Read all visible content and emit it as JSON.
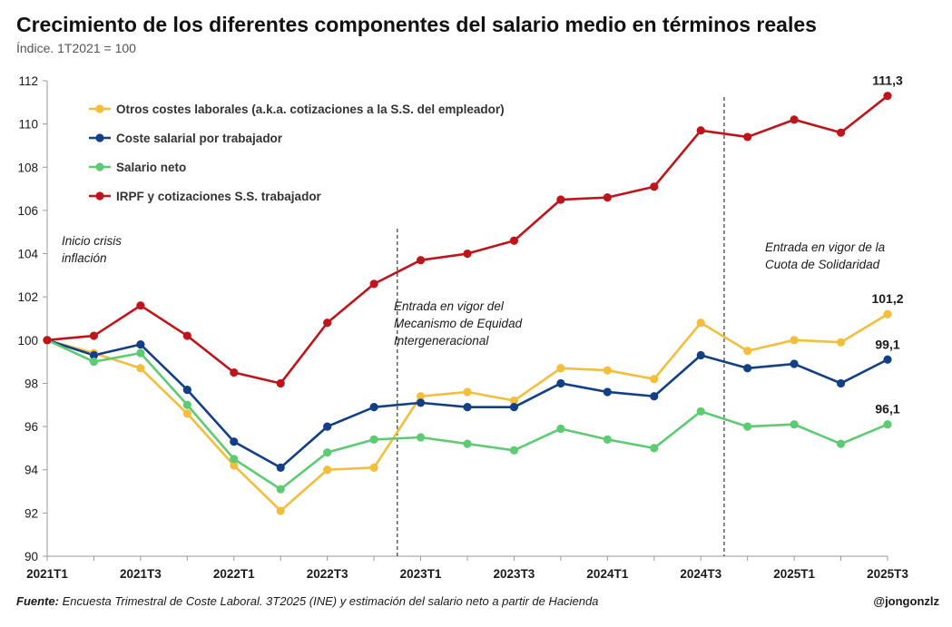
{
  "title": "Crecimiento de los diferentes componentes del salario medio en términos reales",
  "subtitle": "Índice. 1T2021 = 100",
  "footer": {
    "source_label": "Fuente:",
    "source_text": "Encuesta Trimestral de Coste Laboral. 3T2025 (INE) y estimación del salario neto a partir de Hacienda",
    "handle": "@jongonzlz"
  },
  "annotations": [
    {
      "text_lines": [
        "Inicio crisis",
        "inflación"
      ]
    },
    {
      "text_lines": [
        "Entrada en vigor del",
        "Mecanismo de Equidad",
        "Intergeneracional"
      ]
    },
    {
      "text_lines": [
        "Entrada en vigor de la",
        "Cuota de Solidaridad"
      ]
    }
  ],
  "chart_data": {
    "type": "line",
    "x": [
      "2021T1",
      "2021T2",
      "2021T3",
      "2021T4",
      "2022T1",
      "2022T2",
      "2022T3",
      "2022T4",
      "2023T1",
      "2023T2",
      "2023T3",
      "2023T4",
      "2024T1",
      "2024T2",
      "2024T3",
      "2024T4",
      "2025T1",
      "2025T2",
      "2025T3"
    ],
    "x_tick_labels": [
      "2021T1",
      "2021T3",
      "2022T1",
      "2022T3",
      "2023T1",
      "2023T3",
      "2024T1",
      "2024T3",
      "2025T1",
      "2025T3"
    ],
    "ylim": [
      90,
      112
    ],
    "y_ticks": [
      90,
      92,
      94,
      96,
      98,
      100,
      102,
      104,
      106,
      108,
      110,
      112
    ],
    "grid": false,
    "legend_position": "top-left",
    "vlines_after_index": [
      7,
      14
    ],
    "series": [
      {
        "name": "Otros costes laborales (a.k.a. cotizaciones a la S.S. del empleador)",
        "color": "#F2BE3C",
        "values": [
          100.0,
          99.4,
          98.7,
          96.6,
          94.2,
          92.1,
          94.0,
          94.1,
          97.4,
          97.6,
          97.2,
          98.7,
          98.6,
          98.2,
          100.8,
          99.5,
          100.0,
          99.9,
          101.2
        ],
        "end_label": "101,2"
      },
      {
        "name": "Coste salarial por trabajador",
        "color": "#123F86",
        "values": [
          100.0,
          99.3,
          99.8,
          97.7,
          95.3,
          94.1,
          96.0,
          96.9,
          97.1,
          96.9,
          96.9,
          98.0,
          97.6,
          97.4,
          99.3,
          98.7,
          98.9,
          98.0,
          99.1
        ],
        "end_label": "99,1"
      },
      {
        "name": "Salario neto",
        "color": "#5CCB73",
        "values": [
          100.0,
          99.0,
          99.4,
          97.0,
          94.5,
          93.1,
          94.8,
          95.4,
          95.5,
          95.2,
          94.9,
          95.9,
          95.4,
          95.0,
          96.7,
          96.0,
          96.1,
          95.2,
          96.1
        ],
        "end_label": "96,1"
      },
      {
        "name": "IRPF y cotizaciones S.S. trabajador",
        "color": "#C0141C",
        "values": [
          100.0,
          100.2,
          101.6,
          100.2,
          98.5,
          98.0,
          100.8,
          102.6,
          103.7,
          104.0,
          104.6,
          106.5,
          106.6,
          107.1,
          109.7,
          109.4,
          110.2,
          109.6,
          111.3
        ],
        "end_label": "111,3"
      }
    ]
  }
}
